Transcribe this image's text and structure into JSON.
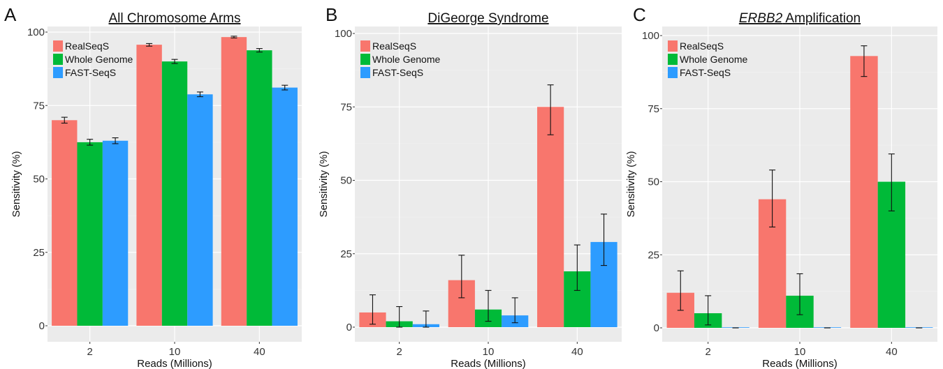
{
  "chart_data": [
    {
      "type": "bar",
      "panel_label": "A",
      "title": "All Chromosome Arms",
      "title_italic_prefix": "",
      "xlabel": "Reads (Millions)",
      "ylabel": "Sensitivity (%)",
      "categories": [
        "2",
        "10",
        "40"
      ],
      "ylim": [
        0,
        100
      ],
      "yticks": [
        "0",
        "25",
        "50",
        "75",
        "100"
      ],
      "grid": true,
      "legend_position": "top-left",
      "series": [
        {
          "name": "RealSeqS",
          "color": "#F8766D",
          "values": [
            70.0,
            95.7,
            98.3
          ],
          "err": [
            [
              69.0,
              71.0
            ],
            [
              95.2,
              96.1
            ],
            [
              98.0,
              98.6
            ]
          ]
        },
        {
          "name": "Whole Genome",
          "color": "#00BA38",
          "values": [
            62.5,
            90.0,
            93.8
          ],
          "err": [
            [
              61.5,
              63.5
            ],
            [
              89.3,
              90.7
            ],
            [
              93.2,
              94.4
            ]
          ]
        },
        {
          "name": "FAST-SeqS",
          "color": "#2D9CFF",
          "values": [
            63.0,
            78.8,
            81.1
          ],
          "err": [
            [
              62.0,
              64.0
            ],
            [
              78.0,
              79.6
            ],
            [
              80.3,
              81.9
            ]
          ]
        }
      ]
    },
    {
      "type": "bar",
      "panel_label": "B",
      "title": "DiGeorge Syndrome",
      "title_italic_prefix": "",
      "xlabel": "Reads (Millions)",
      "ylabel": "Sensitivity (%)",
      "categories": [
        "2",
        "10",
        "40"
      ],
      "ylim": [
        0,
        100
      ],
      "yticks": [
        "0",
        "25",
        "50",
        "75",
        "100"
      ],
      "grid": true,
      "legend_position": "top-left",
      "series": [
        {
          "name": "RealSeqS",
          "color": "#F8766D",
          "values": [
            5.0,
            16.0,
            75.0
          ],
          "err": [
            [
              1.0,
              11.0
            ],
            [
              10.0,
              24.5
            ],
            [
              65.5,
              82.5
            ]
          ]
        },
        {
          "name": "Whole Genome",
          "color": "#00BA38",
          "values": [
            2.0,
            6.0,
            19.0
          ],
          "err": [
            [
              0.0,
              7.0
            ],
            [
              2.0,
              12.5
            ],
            [
              12.5,
              28.0
            ]
          ]
        },
        {
          "name": "FAST-SeqS",
          "color": "#2D9CFF",
          "values": [
            1.0,
            4.0,
            29.0
          ],
          "err": [
            [
              0.0,
              5.5
            ],
            [
              1.5,
              10.0
            ],
            [
              21.0,
              38.5
            ]
          ]
        }
      ]
    },
    {
      "type": "bar",
      "panel_label": "C",
      "title": " Amplification",
      "title_italic_prefix": "ERBB2",
      "xlabel": "Reads (Millions)",
      "ylabel": "Sensitivity (%)",
      "categories": [
        "2",
        "10",
        "40"
      ],
      "ylim": [
        0,
        100
      ],
      "yticks": [
        "0",
        "25",
        "50",
        "75",
        "100"
      ],
      "grid": true,
      "legend_position": "top-left",
      "series": [
        {
          "name": "RealSeqS",
          "color": "#F8766D",
          "values": [
            12.0,
            44.0,
            93.0
          ],
          "err": [
            [
              6.0,
              19.5
            ],
            [
              34.5,
              54.0
            ],
            [
              86.0,
              96.5
            ]
          ]
        },
        {
          "name": "Whole Genome",
          "color": "#00BA38",
          "values": [
            5.0,
            11.0,
            50.0
          ],
          "err": [
            [
              1.0,
              11.0
            ],
            [
              4.5,
              18.5
            ],
            [
              40.0,
              59.5
            ]
          ]
        },
        {
          "name": "FAST-SeqS",
          "color": "#2D9CFF",
          "values": [
            0.0,
            0.0,
            0.0
          ],
          "err": [
            [
              0.0,
              0.0
            ],
            [
              0.0,
              0.0
            ],
            [
              0.0,
              0.0
            ]
          ]
        }
      ]
    }
  ]
}
